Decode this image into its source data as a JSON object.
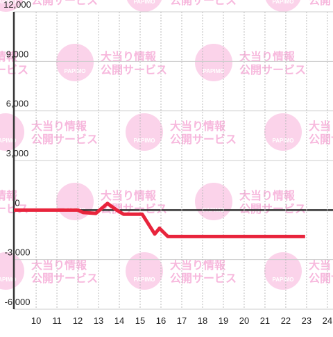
{
  "chart_data": {
    "type": "line",
    "watermark": {
      "logo": "PAPIMO",
      "line1": "大当り情報",
      "line2": "公開サービス"
    },
    "x": [
      8.93,
      12,
      12.27,
      12.87,
      13.43,
      13.87,
      14.2,
      15.1,
      15.7,
      15.93,
      16.33,
      22.93
    ],
    "series": [
      {
        "color": "#e8243c",
        "values": [
          0,
          0,
          -150,
          -200,
          400,
          0,
          -250,
          -250,
          -1450,
          -1100,
          -1600,
          -1600
        ]
      }
    ],
    "xlim": [
      8.93,
      24.27
    ],
    "xticks": [
      10,
      11,
      12,
      13,
      14,
      15,
      16,
      17,
      18,
      19,
      20,
      21,
      22,
      23,
      24
    ],
    "ylim": [
      -6000,
      12000
    ],
    "yticks": [
      {
        "value": -6000,
        "label": "-6,000"
      },
      {
        "value": -3000,
        "label": "-3,000"
      },
      0,
      {
        "value": 3000,
        "label": "3,000"
      },
      {
        "value": 6000,
        "label": "6,000"
      },
      {
        "value": 9000,
        "label": "9,000"
      },
      {
        "value": 12000,
        "label": "12,000"
      }
    ],
    "grid": true
  }
}
